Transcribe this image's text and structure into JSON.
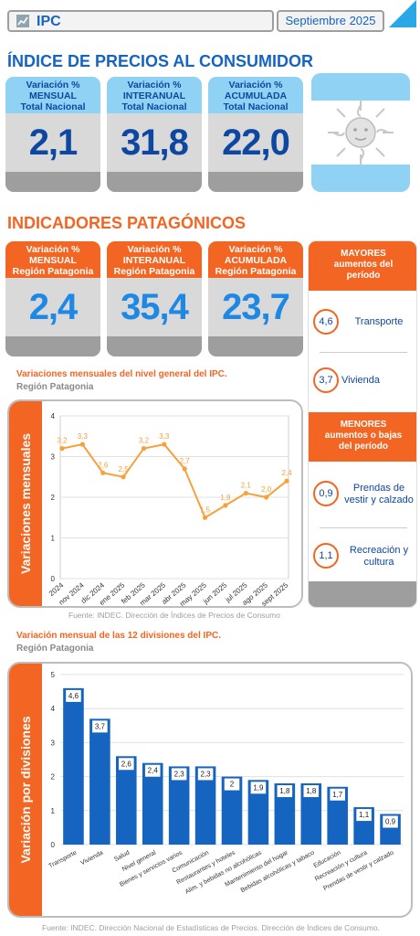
{
  "header": {
    "title": "IPC",
    "date": "Septiembre 2025"
  },
  "section1": {
    "title": "ÍNDICE DE PRECIOS AL CONSUMIDOR",
    "cards": [
      {
        "line1": "Variación %",
        "line2": "MENSUAL",
        "line3": "Total Nacional",
        "value": "2,1"
      },
      {
        "line1": "Variación %",
        "line2": "INTERANUAL",
        "line3": "Total Nacional",
        "value": "31,8"
      },
      {
        "line1": "Variación %",
        "line2": "ACUMULADA",
        "line3": "Total Nacional",
        "value": "22,0"
      }
    ]
  },
  "section2": {
    "title": "INDICADORES PATAGÓNICOS",
    "cards": [
      {
        "line1": "Variación %",
        "line2": "MENSUAL",
        "line3": "Región Patagonia",
        "value": "2,4"
      },
      {
        "line1": "Variación %",
        "line2": "INTERANUAL",
        "line3": "Región Patagonia",
        "value": "35,4"
      },
      {
        "line1": "Variación %",
        "line2": "ACUMULADA",
        "line3": "Región Patagonia",
        "value": "23,7"
      }
    ]
  },
  "side_panel": {
    "mayores_title": [
      "MAYORES",
      "aumentos del",
      "período"
    ],
    "mayores": [
      {
        "value": "4,6",
        "label": "Transporte"
      },
      {
        "value": "3,7",
        "label": "Vivienda"
      }
    ],
    "menores_title": [
      "MENORES",
      "aumentos o bajas",
      "del período"
    ],
    "menores": [
      {
        "value": "0,9",
        "label": "Prendas de vestir y calzado"
      },
      {
        "value": "1,1",
        "label": "Recreación y cultura"
      }
    ]
  },
  "line_chart": {
    "title": "Variaciones mensuales del nivel general del IPC.",
    "subtitle": "Región Patagonia",
    "side_label": "Variaciones mensuales",
    "source": "Fuente: INDEC. Dirección de Índices de Precios de Consumo"
  },
  "bar_chart": {
    "title": "Variación mensual de las 12 divisiones del IPC.",
    "subtitle": "Región Patagonia",
    "side_label": "Variación por divisiones",
    "source": "Fuente: INDEC. Dirección Nacional de Estadísticas de Precios. Dirección de Índices de Consumo."
  },
  "colors": {
    "accent_orange": "#f26522",
    "line_orange": "#f7a13a",
    "bar_blue": "#1565c0",
    "title_blue": "#1565c0"
  },
  "chart_data": [
    {
      "type": "line",
      "categories": [
        "2024",
        "nov 2024",
        "dic 2024",
        "ene 2025",
        "feb 2025",
        "mar 2025",
        "abr 2025",
        "may 2025",
        "jun 2025",
        "jul 2025",
        "ago 2025",
        "sept 2025"
      ],
      "series": [
        {
          "values": [
            3.2,
            3.3,
            2.6,
            2.5,
            3.2,
            3.3,
            2.7,
            1.5,
            1.8,
            2.1,
            2.0,
            2.4
          ]
        }
      ],
      "labels": [
        "3,2",
        "3,3",
        "2,6",
        "2,5",
        "3,2",
        "3,3",
        "2,7",
        "1,5",
        "1,8",
        "2,1",
        "2,0",
        "2,4"
      ],
      "title": "Variaciones mensuales del nivel general del IPC.",
      "ylabel": "Variaciones mensuales",
      "ylim": [
        0,
        4
      ],
      "yticks": [
        0,
        1,
        2,
        3,
        4
      ],
      "grid": true
    },
    {
      "type": "bar",
      "categories": [
        "Transporte",
        "Vivienda",
        "Salud",
        "Nivel general",
        "Bienes y servicios varios",
        "Comunicación",
        "Restaurantes y hoteles",
        "Alim. y bebidas no alcohólicas",
        "Mantenimiento del hogar",
        "Bebidas alcohólicas y tabaco",
        "Educación",
        "Recreación y cultura",
        "Prendas de vestir y calzado"
      ],
      "values": [
        4.6,
        3.7,
        2.6,
        2.4,
        2.3,
        2.3,
        2.0,
        1.9,
        1.8,
        1.8,
        1.7,
        1.1,
        0.9
      ],
      "labels": [
        "4,6",
        "3,7",
        "2,6",
        "2,4",
        "2,3",
        "2,3",
        "2",
        "1,9",
        "1,8",
        "1,8",
        "1,7",
        "1,1",
        "0,9"
      ],
      "title": "Variación mensual de las 12 divisiones del IPC.",
      "ylabel": "Variación por divisiones",
      "ylim": [
        0,
        5
      ],
      "yticks": [
        0,
        1,
        2,
        3,
        4,
        5
      ],
      "grid": true
    }
  ]
}
